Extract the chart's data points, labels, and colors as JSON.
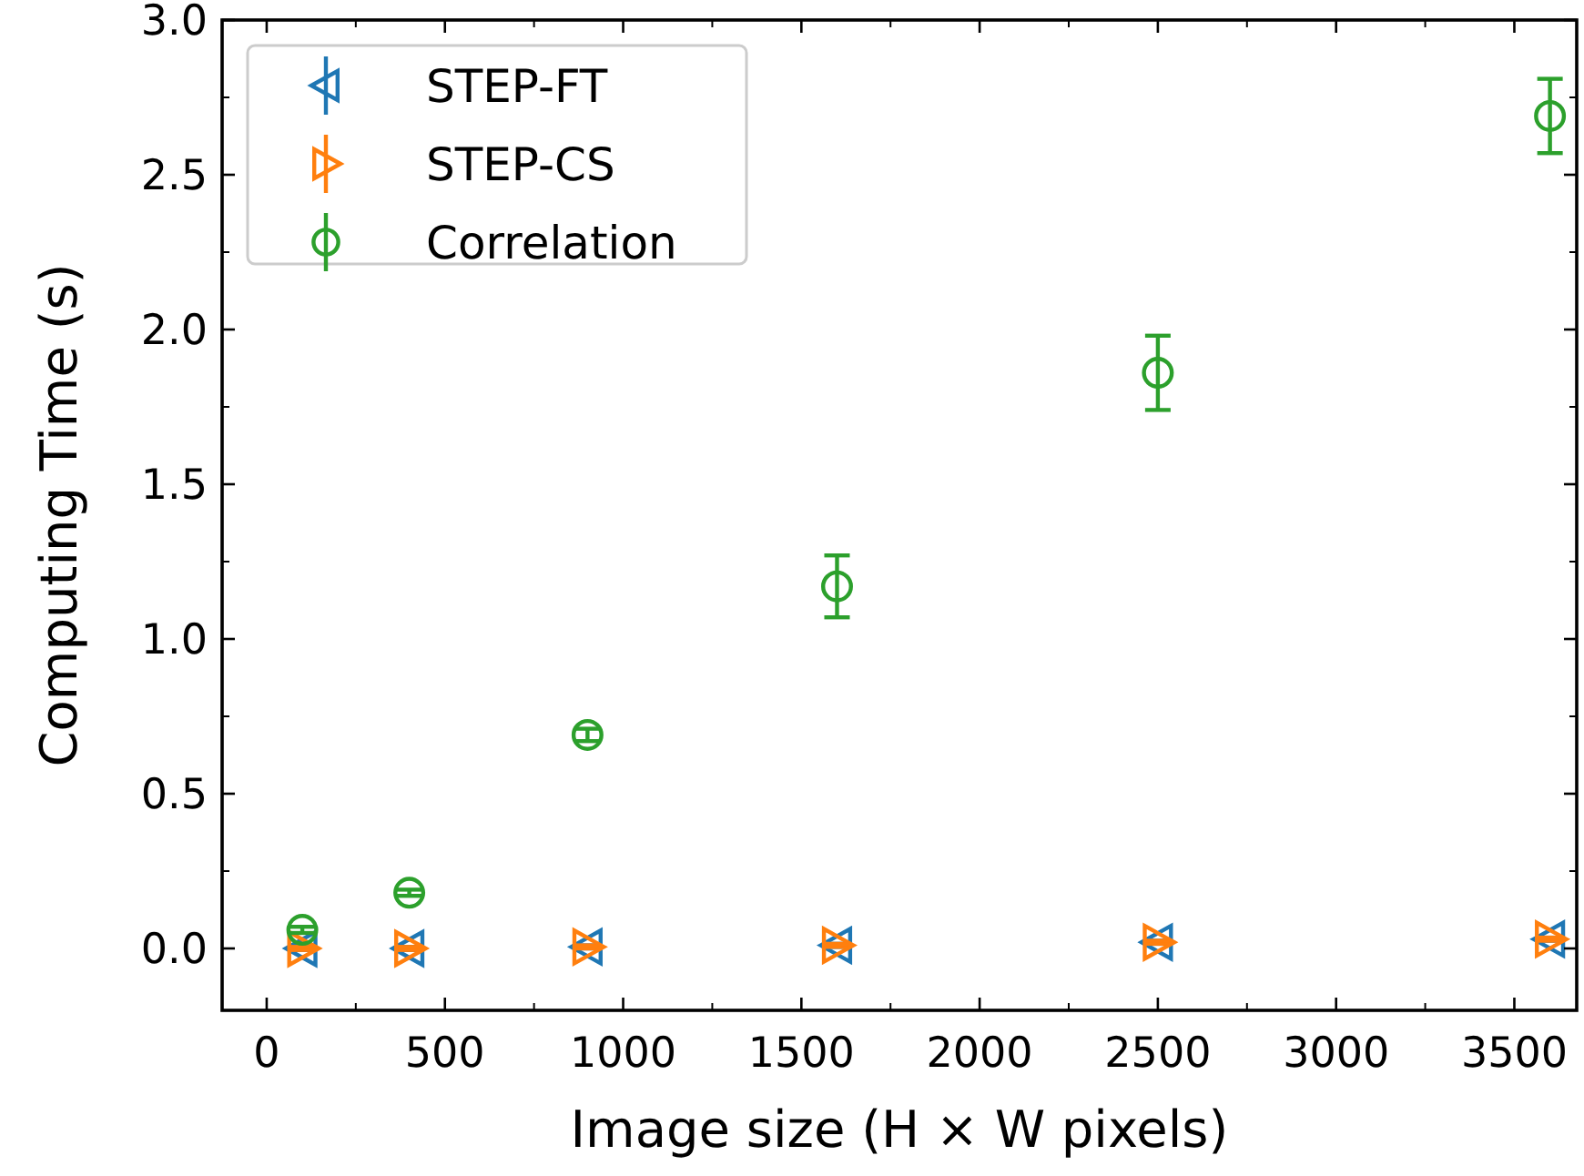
{
  "chart_data": {
    "type": "scatter",
    "xlabel": "Image size (H × W pixels)",
    "ylabel": "Computing Time (s)",
    "xlim": [
      -125,
      3675
    ],
    "xticks": [
      0,
      500,
      1000,
      1500,
      2000,
      2500,
      3000,
      3500
    ],
    "ylim": [
      -0.2,
      3.0
    ],
    "yticks": [
      {
        "value": 0,
        "label": "0.0"
      },
      {
        "value": 0.5,
        "label": "0.5"
      },
      {
        "value": 1,
        "label": "1.0"
      },
      {
        "value": 1.5,
        "label": "1.5"
      },
      {
        "value": 2,
        "label": "2.0"
      },
      {
        "value": 2.5,
        "label": "2.5"
      },
      {
        "value": 3,
        "label": "3.0"
      }
    ],
    "x": [
      100,
      400,
      900,
      1600,
      2500,
      3600
    ],
    "grid": false,
    "legend": "top left",
    "series": [
      {
        "name": "STEP-FT",
        "color": "#1f77b4",
        "marker": "triangle_left",
        "values": [
          0.0,
          0.0,
          0.005,
          0.01,
          0.02,
          0.03
        ],
        "errors": [
          0.005,
          0.005,
          0.005,
          0.005,
          0.005,
          0.005
        ]
      },
      {
        "name": "STEP-CS",
        "color": "#ff7f0e",
        "marker": "triangle_right",
        "values": [
          0.0,
          0.0,
          0.005,
          0.01,
          0.02,
          0.03
        ],
        "errors": [
          0.005,
          0.005,
          0.005,
          0.005,
          0.005,
          0.005
        ]
      },
      {
        "name": "Correlation",
        "color": "#2ca02c",
        "marker": "circle",
        "values": [
          0.06,
          0.18,
          0.69,
          1.17,
          1.86,
          2.69
        ],
        "errors": [
          0.01,
          0.01,
          0.02,
          0.1,
          0.12,
          0.12
        ]
      }
    ]
  }
}
